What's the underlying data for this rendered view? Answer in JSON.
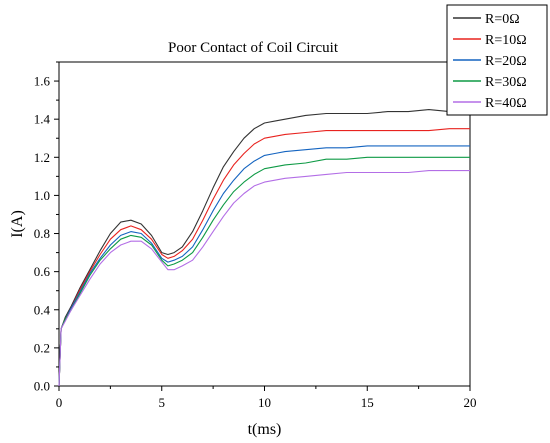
{
  "chart_data": {
    "type": "line",
    "title": "Poor Contact of Coil Circuit",
    "xlabel": "t(ms)",
    "ylabel": "I(A)",
    "xlim": [
      0,
      20
    ],
    "ylim": [
      0,
      1.7
    ],
    "xticks": [
      0,
      5,
      10,
      15,
      20
    ],
    "xtick_labels": [
      "0",
      "5",
      "10",
      "15",
      "20"
    ],
    "yticks": [
      0,
      0.2,
      0.4,
      0.6,
      0.8,
      1.0,
      1.2,
      1.4,
      1.6
    ],
    "ytick_labels": [
      "0.0",
      "0.2",
      "0.4",
      "0.6",
      "0.8",
      "1.0",
      "1.2",
      "1.4",
      "1.6"
    ],
    "grid": false,
    "legend_position": "top-right",
    "series": [
      {
        "name": "R=0Ω",
        "color": "#333333",
        "x": [
          0,
          0.1,
          0.3,
          0.6,
          1.0,
          1.5,
          2.0,
          2.5,
          3.0,
          3.5,
          4.0,
          4.5,
          5.0,
          5.3,
          5.6,
          6.0,
          6.5,
          7.0,
          7.5,
          8.0,
          8.5,
          9.0,
          9.5,
          10.0,
          10.5,
          11.0,
          12.0,
          13.0,
          14.0,
          15.0,
          16.0,
          17.0,
          18.0,
          19.0,
          20.0
        ],
        "y": [
          0.0,
          0.3,
          0.36,
          0.42,
          0.51,
          0.61,
          0.71,
          0.8,
          0.86,
          0.87,
          0.85,
          0.79,
          0.7,
          0.69,
          0.7,
          0.73,
          0.81,
          0.92,
          1.04,
          1.15,
          1.23,
          1.3,
          1.35,
          1.38,
          1.39,
          1.4,
          1.42,
          1.43,
          1.43,
          1.43,
          1.44,
          1.44,
          1.45,
          1.44,
          1.43
        ]
      },
      {
        "name": "R=10Ω",
        "color": "#e8231f",
        "x": [
          0,
          0.1,
          0.3,
          0.6,
          1.0,
          1.5,
          2.0,
          2.5,
          3.0,
          3.5,
          4.0,
          4.5,
          5.0,
          5.3,
          5.6,
          6.0,
          6.5,
          7.0,
          7.5,
          8.0,
          8.5,
          9.0,
          9.5,
          10.0,
          10.5,
          11.0,
          12.0,
          13.0,
          14.0,
          15.0,
          16.0,
          17.0,
          18.0,
          19.0,
          20.0
        ],
        "y": [
          0.0,
          0.3,
          0.35,
          0.41,
          0.5,
          0.6,
          0.69,
          0.77,
          0.82,
          0.84,
          0.82,
          0.77,
          0.69,
          0.67,
          0.68,
          0.71,
          0.77,
          0.87,
          0.98,
          1.08,
          1.16,
          1.22,
          1.27,
          1.3,
          1.31,
          1.32,
          1.33,
          1.34,
          1.34,
          1.34,
          1.34,
          1.34,
          1.34,
          1.35,
          1.35
        ]
      },
      {
        "name": "R=20Ω",
        "color": "#1464c0",
        "x": [
          0,
          0.1,
          0.3,
          0.6,
          1.0,
          1.5,
          2.0,
          2.5,
          3.0,
          3.5,
          4.0,
          4.5,
          5.0,
          5.3,
          5.6,
          6.0,
          6.5,
          7.0,
          7.5,
          8.0,
          8.5,
          9.0,
          9.5,
          10.0,
          10.5,
          11.0,
          12.0,
          13.0,
          14.0,
          15.0,
          16.0,
          17.0,
          18.0,
          19.0,
          20.0
        ],
        "y": [
          0.0,
          0.3,
          0.35,
          0.41,
          0.49,
          0.59,
          0.67,
          0.74,
          0.79,
          0.81,
          0.8,
          0.75,
          0.67,
          0.65,
          0.66,
          0.68,
          0.73,
          0.82,
          0.92,
          1.01,
          1.08,
          1.14,
          1.18,
          1.21,
          1.22,
          1.23,
          1.24,
          1.25,
          1.25,
          1.26,
          1.26,
          1.26,
          1.26,
          1.26,
          1.26
        ]
      },
      {
        "name": "R=30Ω",
        "color": "#0e9a45",
        "x": [
          0,
          0.1,
          0.3,
          0.6,
          1.0,
          1.5,
          2.0,
          2.5,
          3.0,
          3.5,
          4.0,
          4.5,
          5.0,
          5.3,
          5.6,
          6.0,
          6.5,
          7.0,
          7.5,
          8.0,
          8.5,
          9.0,
          9.5,
          10.0,
          10.5,
          11.0,
          12.0,
          13.0,
          14.0,
          15.0,
          16.0,
          17.0,
          18.0,
          19.0,
          20.0
        ],
        "y": [
          0.0,
          0.3,
          0.35,
          0.4,
          0.48,
          0.58,
          0.66,
          0.72,
          0.77,
          0.79,
          0.78,
          0.74,
          0.66,
          0.63,
          0.64,
          0.66,
          0.7,
          0.78,
          0.87,
          0.95,
          1.02,
          1.07,
          1.11,
          1.14,
          1.15,
          1.16,
          1.17,
          1.19,
          1.19,
          1.2,
          1.2,
          1.2,
          1.2,
          1.2,
          1.2
        ]
      },
      {
        "name": "R=40Ω",
        "color": "#b36ee6",
        "x": [
          0,
          0.1,
          0.3,
          0.6,
          1.0,
          1.5,
          2.0,
          2.5,
          3.0,
          3.5,
          4.0,
          4.5,
          5.0,
          5.3,
          5.6,
          6.0,
          6.5,
          7.0,
          7.5,
          8.0,
          8.5,
          9.0,
          9.5,
          10.0,
          10.5,
          11.0,
          12.0,
          13.0,
          14.0,
          15.0,
          16.0,
          17.0,
          18.0,
          19.0,
          20.0
        ],
        "y": [
          0.0,
          0.3,
          0.34,
          0.4,
          0.47,
          0.56,
          0.64,
          0.7,
          0.74,
          0.76,
          0.76,
          0.72,
          0.65,
          0.61,
          0.61,
          0.63,
          0.66,
          0.73,
          0.81,
          0.89,
          0.96,
          1.01,
          1.05,
          1.07,
          1.08,
          1.09,
          1.1,
          1.11,
          1.12,
          1.12,
          1.12,
          1.12,
          1.13,
          1.13,
          1.13
        ]
      }
    ]
  }
}
